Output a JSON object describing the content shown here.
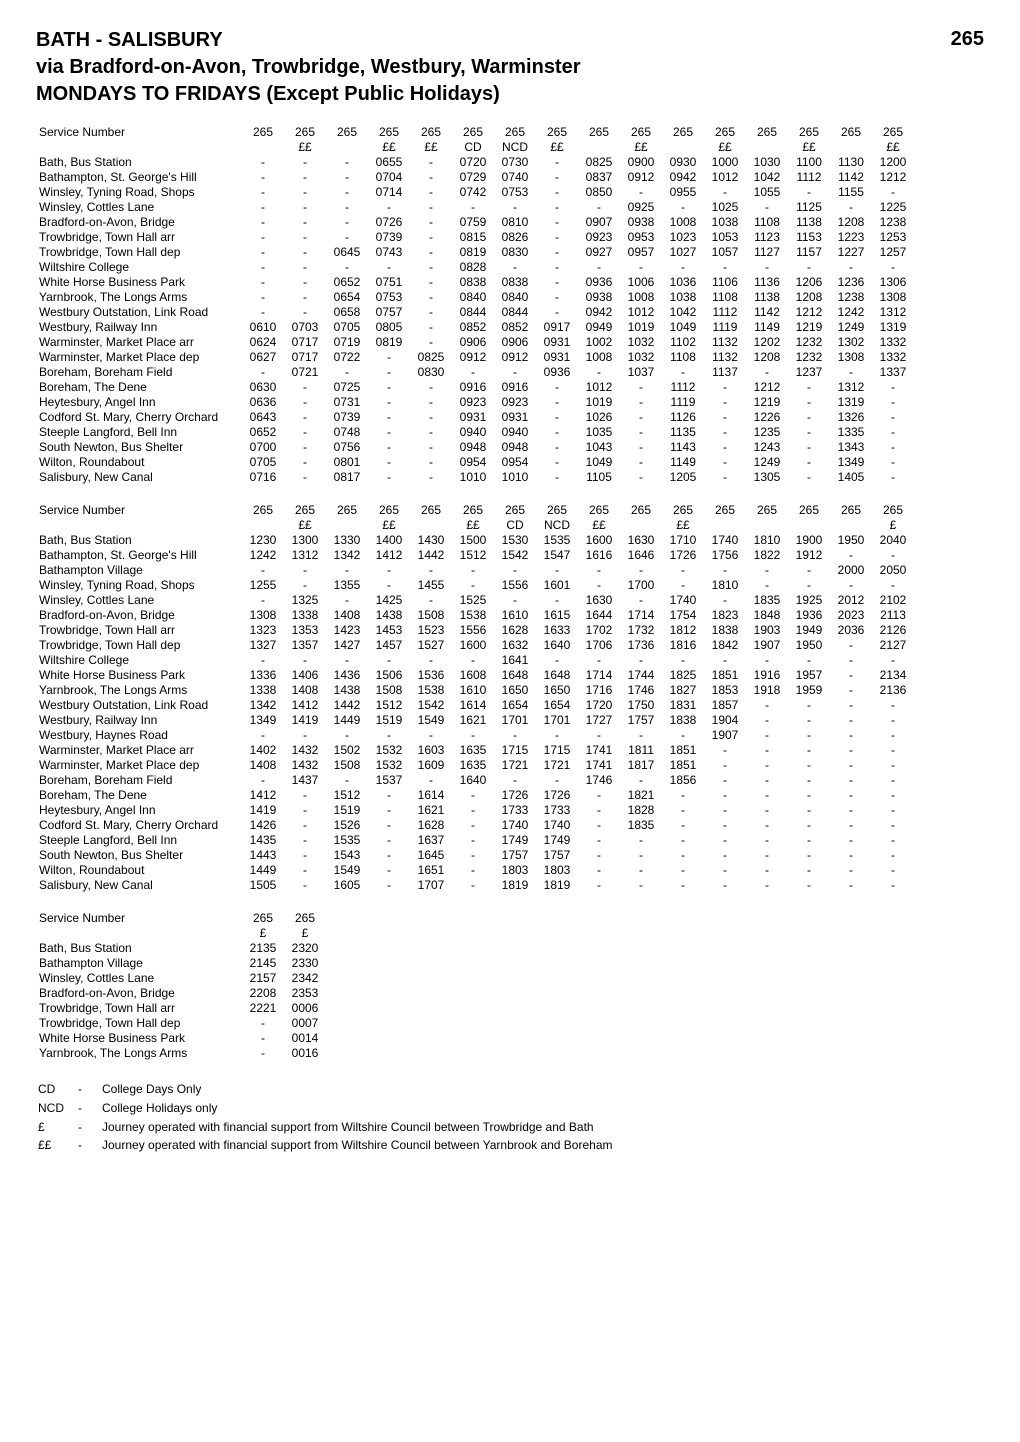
{
  "header": {
    "title": "BATH - SALISBURY",
    "route_number": "265",
    "subtitle": "via Bradford-on-Avon, Trowbridge, Westbury, Warminster",
    "days": "MONDAYS TO FRIDAYS (Except Public Holidays)"
  },
  "blocks": [
    {
      "service_label": "Service Number",
      "service_numbers": [
        "265",
        "265",
        "265",
        "265",
        "265",
        "265",
        "265",
        "265",
        "265",
        "265",
        "265",
        "265",
        "265",
        "265",
        "265",
        "265"
      ],
      "code_row": [
        "",
        "££",
        "",
        "££",
        "££",
        "CD",
        "NCD",
        "££",
        "",
        "££",
        "",
        "££",
        "",
        "££",
        "",
        "££"
      ],
      "stops": [
        "Bath, Bus Station",
        "Bathampton, St. George's Hill",
        "Winsley, Tyning Road, Shops",
        "Winsley, Cottles Lane",
        "Bradford-on-Avon, Bridge",
        "Trowbridge, Town Hall arr",
        "Trowbridge, Town Hall dep",
        "Wiltshire College",
        "White Horse Business Park",
        "Yarnbrook, The Longs Arms",
        "Westbury Outstation, Link Road",
        "Westbury, Railway Inn",
        "Warminster, Market Place arr",
        "Warminster, Market Place dep",
        "Boreham, Boreham Field",
        "Boreham, The Dene",
        "Heytesbury, Angel Inn",
        "Codford St. Mary, Cherry Orchard",
        "Steeple Langford, Bell Inn",
        "South Newton, Bus Shelter",
        "Wilton, Roundabout",
        "Salisbury, New Canal"
      ],
      "times": [
        [
          "-",
          "-",
          "-",
          "0655",
          "-",
          "0720",
          "0730",
          "-",
          "0825",
          "0900",
          "0930",
          "1000",
          "1030",
          "1100",
          "1130",
          "1200"
        ],
        [
          "-",
          "-",
          "-",
          "0704",
          "-",
          "0729",
          "0740",
          "-",
          "0837",
          "0912",
          "0942",
          "1012",
          "1042",
          "1112",
          "1142",
          "1212"
        ],
        [
          "-",
          "-",
          "-",
          "0714",
          "-",
          "0742",
          "0753",
          "-",
          "0850",
          "-",
          "0955",
          "-",
          "1055",
          "-",
          "1155",
          "-"
        ],
        [
          "-",
          "-",
          "-",
          "-",
          "-",
          "-",
          "-",
          "-",
          "-",
          "0925",
          "-",
          "1025",
          "-",
          "1125",
          "-",
          "1225"
        ],
        [
          "-",
          "-",
          "-",
          "0726",
          "-",
          "0759",
          "0810",
          "-",
          "0907",
          "0938",
          "1008",
          "1038",
          "1108",
          "1138",
          "1208",
          "1238"
        ],
        [
          "-",
          "-",
          "-",
          "0739",
          "-",
          "0815",
          "0826",
          "-",
          "0923",
          "0953",
          "1023",
          "1053",
          "1123",
          "1153",
          "1223",
          "1253"
        ],
        [
          "-",
          "-",
          "0645",
          "0743",
          "-",
          "0819",
          "0830",
          "-",
          "0927",
          "0957",
          "1027",
          "1057",
          "1127",
          "1157",
          "1227",
          "1257"
        ],
        [
          "-",
          "-",
          "-",
          "-",
          "-",
          "0828",
          "-",
          "-",
          "-",
          "-",
          "-",
          "-",
          "-",
          "-",
          "-",
          "-"
        ],
        [
          "-",
          "-",
          "0652",
          "0751",
          "-",
          "0838",
          "0838",
          "-",
          "0936",
          "1006",
          "1036",
          "1106",
          "1136",
          "1206",
          "1236",
          "1306"
        ],
        [
          "-",
          "-",
          "0654",
          "0753",
          "-",
          "0840",
          "0840",
          "-",
          "0938",
          "1008",
          "1038",
          "1108",
          "1138",
          "1208",
          "1238",
          "1308"
        ],
        [
          "-",
          "-",
          "0658",
          "0757",
          "-",
          "0844",
          "0844",
          "-",
          "0942",
          "1012",
          "1042",
          "1112",
          "1142",
          "1212",
          "1242",
          "1312"
        ],
        [
          "0610",
          "0703",
          "0705",
          "0805",
          "-",
          "0852",
          "0852",
          "0917",
          "0949",
          "1019",
          "1049",
          "1119",
          "1149",
          "1219",
          "1249",
          "1319"
        ],
        [
          "0624",
          "0717",
          "0719",
          "0819",
          "-",
          "0906",
          "0906",
          "0931",
          "1002",
          "1032",
          "1102",
          "1132",
          "1202",
          "1232",
          "1302",
          "1332"
        ],
        [
          "0627",
          "0717",
          "0722",
          "-",
          "0825",
          "0912",
          "0912",
          "0931",
          "1008",
          "1032",
          "1108",
          "1132",
          "1208",
          "1232",
          "1308",
          "1332"
        ],
        [
          "-",
          "0721",
          "-",
          "-",
          "0830",
          "-",
          "-",
          "0936",
          "-",
          "1037",
          "-",
          "1137",
          "-",
          "1237",
          "-",
          "1337"
        ],
        [
          "0630",
          "-",
          "0725",
          "-",
          "-",
          "0916",
          "0916",
          "-",
          "1012",
          "-",
          "1112",
          "-",
          "1212",
          "-",
          "1312",
          "-"
        ],
        [
          "0636",
          "-",
          "0731",
          "-",
          "-",
          "0923",
          "0923",
          "-",
          "1019",
          "-",
          "1119",
          "-",
          "1219",
          "-",
          "1319",
          "-"
        ],
        [
          "0643",
          "-",
          "0739",
          "-",
          "-",
          "0931",
          "0931",
          "-",
          "1026",
          "-",
          "1126",
          "-",
          "1226",
          "-",
          "1326",
          "-"
        ],
        [
          "0652",
          "-",
          "0748",
          "-",
          "-",
          "0940",
          "0940",
          "-",
          "1035",
          "-",
          "1135",
          "-",
          "1235",
          "-",
          "1335",
          "-"
        ],
        [
          "0700",
          "-",
          "0756",
          "-",
          "-",
          "0948",
          "0948",
          "-",
          "1043",
          "-",
          "1143",
          "-",
          "1243",
          "-",
          "1343",
          "-"
        ],
        [
          "0705",
          "-",
          "0801",
          "-",
          "-",
          "0954",
          "0954",
          "-",
          "1049",
          "-",
          "1149",
          "-",
          "1249",
          "-",
          "1349",
          "-"
        ],
        [
          "0716",
          "-",
          "0817",
          "-",
          "-",
          "1010",
          "1010",
          "-",
          "1105",
          "-",
          "1205",
          "-",
          "1305",
          "-",
          "1405",
          "-"
        ]
      ]
    },
    {
      "service_label": "Service Number",
      "service_numbers": [
        "265",
        "265",
        "265",
        "265",
        "265",
        "265",
        "265",
        "265",
        "265",
        "265",
        "265",
        "265",
        "265",
        "265",
        "265",
        "265"
      ],
      "code_row": [
        "",
        "££",
        "",
        "££",
        "",
        "££",
        "CD",
        "NCD",
        "££",
        "",
        "££",
        "",
        "",
        "",
        "",
        "£"
      ],
      "stops": [
        "Bath, Bus Station",
        "Bathampton, St. George's Hill",
        "Bathampton Village",
        "Winsley, Tyning Road, Shops",
        "Winsley, Cottles Lane",
        "Bradford-on-Avon, Bridge",
        "Trowbridge, Town Hall arr",
        "Trowbridge, Town Hall dep",
        "Wiltshire College",
        "White Horse Business Park",
        "Yarnbrook, The Longs Arms",
        "Westbury Outstation, Link Road",
        "Westbury, Railway Inn",
        "Westbury, Haynes Road",
        "Warminster, Market Place arr",
        "Warminster, Market Place dep",
        "Boreham, Boreham Field",
        "Boreham, The Dene",
        "Heytesbury, Angel Inn",
        "Codford St. Mary, Cherry Orchard",
        "Steeple Langford, Bell Inn",
        "South Newton, Bus Shelter",
        "Wilton, Roundabout",
        "Salisbury, New Canal"
      ],
      "times": [
        [
          "1230",
          "1300",
          "1330",
          "1400",
          "1430",
          "1500",
          "1530",
          "1535",
          "1600",
          "1630",
          "1710",
          "1740",
          "1810",
          "1900",
          "1950",
          "2040"
        ],
        [
          "1242",
          "1312",
          "1342",
          "1412",
          "1442",
          "1512",
          "1542",
          "1547",
          "1616",
          "1646",
          "1726",
          "1756",
          "1822",
          "1912",
          "-",
          "-"
        ],
        [
          "-",
          "-",
          "-",
          "-",
          "-",
          "-",
          "-",
          "-",
          "-",
          "-",
          "-",
          "-",
          "-",
          "-",
          "2000",
          "2050"
        ],
        [
          "1255",
          "-",
          "1355",
          "-",
          "1455",
          "-",
          "1556",
          "1601",
          "-",
          "1700",
          "-",
          "1810",
          "-",
          "-",
          "-",
          "-"
        ],
        [
          "-",
          "1325",
          "-",
          "1425",
          "-",
          "1525",
          "-",
          "-",
          "1630",
          "-",
          "1740",
          "-",
          "1835",
          "1925",
          "2012",
          "2102"
        ],
        [
          "1308",
          "1338",
          "1408",
          "1438",
          "1508",
          "1538",
          "1610",
          "1615",
          "1644",
          "1714",
          "1754",
          "1823",
          "1848",
          "1936",
          "2023",
          "2113"
        ],
        [
          "1323",
          "1353",
          "1423",
          "1453",
          "1523",
          "1556",
          "1628",
          "1633",
          "1702",
          "1732",
          "1812",
          "1838",
          "1903",
          "1949",
          "2036",
          "2126"
        ],
        [
          "1327",
          "1357",
          "1427",
          "1457",
          "1527",
          "1600",
          "1632",
          "1640",
          "1706",
          "1736",
          "1816",
          "1842",
          "1907",
          "1950",
          "-",
          "2127"
        ],
        [
          "-",
          "-",
          "-",
          "-",
          "-",
          "-",
          "1641",
          "-",
          "-",
          "-",
          "-",
          "-",
          "-",
          "-",
          "-",
          "-"
        ],
        [
          "1336",
          "1406",
          "1436",
          "1506",
          "1536",
          "1608",
          "1648",
          "1648",
          "1714",
          "1744",
          "1825",
          "1851",
          "1916",
          "1957",
          "-",
          "2134"
        ],
        [
          "1338",
          "1408",
          "1438",
          "1508",
          "1538",
          "1610",
          "1650",
          "1650",
          "1716",
          "1746",
          "1827",
          "1853",
          "1918",
          "1959",
          "-",
          "2136"
        ],
        [
          "1342",
          "1412",
          "1442",
          "1512",
          "1542",
          "1614",
          "1654",
          "1654",
          "1720",
          "1750",
          "1831",
          "1857",
          "-",
          "-",
          "-",
          "-"
        ],
        [
          "1349",
          "1419",
          "1449",
          "1519",
          "1549",
          "1621",
          "1701",
          "1701",
          "1727",
          "1757",
          "1838",
          "1904",
          "-",
          "-",
          "-",
          "-"
        ],
        [
          "-",
          "-",
          "-",
          "-",
          "-",
          "-",
          "-",
          "-",
          "-",
          "-",
          "-",
          "1907",
          "-",
          "-",
          "-",
          "-"
        ],
        [
          "1402",
          "1432",
          "1502",
          "1532",
          "1603",
          "1635",
          "1715",
          "1715",
          "1741",
          "1811",
          "1851",
          "-",
          "-",
          "-",
          "-",
          "-"
        ],
        [
          "1408",
          "1432",
          "1508",
          "1532",
          "1609",
          "1635",
          "1721",
          "1721",
          "1741",
          "1817",
          "1851",
          "-",
          "-",
          "-",
          "-",
          "-"
        ],
        [
          "-",
          "1437",
          "-",
          "1537",
          "-",
          "1640",
          "-",
          "-",
          "1746",
          "-",
          "1856",
          "-",
          "-",
          "-",
          "-",
          "-"
        ],
        [
          "1412",
          "-",
          "1512",
          "-",
          "1614",
          "-",
          "1726",
          "1726",
          "-",
          "1821",
          "-",
          "-",
          "-",
          "-",
          "-",
          "-"
        ],
        [
          "1419",
          "-",
          "1519",
          "-",
          "1621",
          "-",
          "1733",
          "1733",
          "-",
          "1828",
          "-",
          "-",
          "-",
          "-",
          "-",
          "-"
        ],
        [
          "1426",
          "-",
          "1526",
          "-",
          "1628",
          "-",
          "1740",
          "1740",
          "-",
          "1835",
          "-",
          "-",
          "-",
          "-",
          "-",
          "-"
        ],
        [
          "1435",
          "-",
          "1535",
          "-",
          "1637",
          "-",
          "1749",
          "1749",
          "-",
          "-",
          "-",
          "-",
          "-",
          "-",
          "-",
          "-"
        ],
        [
          "1443",
          "-",
          "1543",
          "-",
          "1645",
          "-",
          "1757",
          "1757",
          "-",
          "-",
          "-",
          "-",
          "-",
          "-",
          "-",
          "-"
        ],
        [
          "1449",
          "-",
          "1549",
          "-",
          "1651",
          "-",
          "1803",
          "1803",
          "-",
          "-",
          "-",
          "-",
          "-",
          "-",
          "-",
          "-"
        ],
        [
          "1505",
          "-",
          "1605",
          "-",
          "1707",
          "-",
          "1819",
          "1819",
          "-",
          "-",
          "-",
          "-",
          "-",
          "-",
          "-",
          "-"
        ]
      ]
    },
    {
      "service_label": "Service Number",
      "service_numbers": [
        "265",
        "265"
      ],
      "code_row": [
        "£",
        "£"
      ],
      "stops": [
        "Bath, Bus Station",
        "Bathampton Village",
        "Winsley, Cottles Lane",
        "Bradford-on-Avon, Bridge",
        "Trowbridge, Town Hall arr",
        "Trowbridge, Town Hall dep",
        "White Horse Business Park",
        "Yarnbrook, The Longs Arms"
      ],
      "times": [
        [
          "2135",
          "2320"
        ],
        [
          "2145",
          "2330"
        ],
        [
          "2157",
          "2342"
        ],
        [
          "2208",
          "2353"
        ],
        [
          "2221",
          "0006"
        ],
        [
          "-",
          "0007"
        ],
        [
          "-",
          "0014"
        ],
        [
          "-",
          "0016"
        ]
      ]
    }
  ],
  "footnotes": [
    {
      "key": "CD",
      "text": "College Days Only"
    },
    {
      "key": "NCD",
      "text": "College Holidays only"
    },
    {
      "key": "£",
      "text": "Journey operated with financial support from Wiltshire Council between Trowbridge and Bath"
    },
    {
      "key": "££",
      "text": "Journey operated with financial support from Wiltshire Council between Yarnbrook and Boreham"
    }
  ]
}
